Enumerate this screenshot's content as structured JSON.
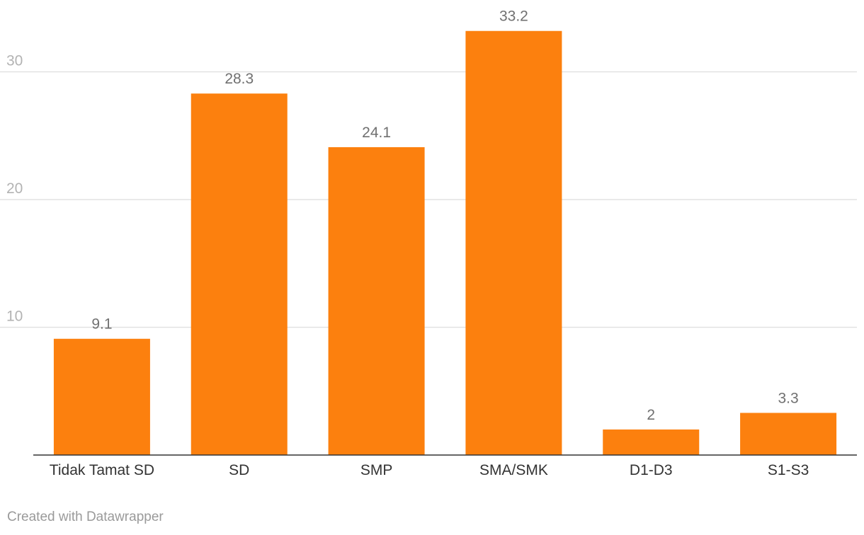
{
  "chart_data": {
    "type": "bar",
    "title": "",
    "xlabel": "",
    "ylabel": "",
    "categories": [
      "Tidak Tamat SD",
      "SD",
      "SMP",
      "SMA/SMK",
      "D1-D3",
      "S1-S3"
    ],
    "values": [
      9.1,
      28.3,
      24.1,
      33.2,
      2,
      3.3
    ],
    "ylim": [
      0,
      34
    ],
    "yticks": [
      10,
      20,
      30
    ],
    "grid": true,
    "legend": "none",
    "data_labels": true
  },
  "colors": {
    "bar": "#fc800e",
    "grid": "#e2e2e2",
    "baseline": "#333333"
  },
  "footer": {
    "credit": "Created with Datawrapper"
  }
}
